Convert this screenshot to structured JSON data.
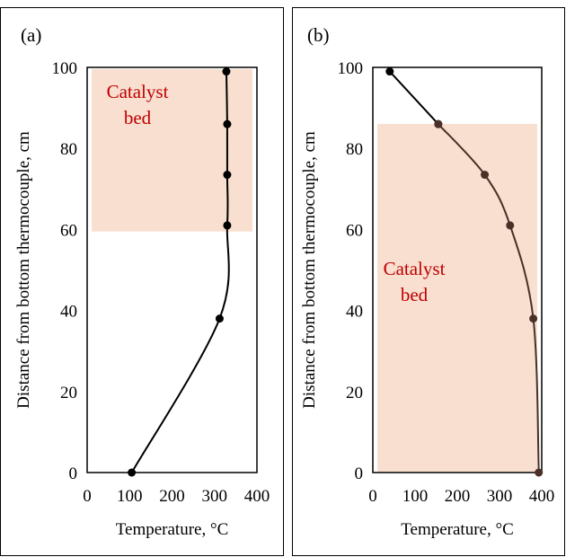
{
  "chart_data": [
    {
      "type": "line",
      "panel_label": "(a)",
      "xlabel": "Temperature, °C",
      "ylabel": "Distance from bottom thermocouple, cm",
      "xlim": [
        0,
        400
      ],
      "ylim": [
        0,
        100
      ],
      "xticks": [
        "0",
        "100",
        "200",
        "300",
        "400"
      ],
      "yticks": [
        "0",
        "20",
        "40",
        "60",
        "80",
        "100"
      ],
      "grid": false,
      "region": {
        "label_lines": [
          "Catalyst",
          "bed"
        ],
        "x_range": [
          0,
          400
        ],
        "y_range": [
          59.5,
          100
        ],
        "color": "#f8dfd0",
        "label_color": "#c00000"
      },
      "series": [
        {
          "color": "#000000",
          "points": [
            {
              "x": 105,
              "y": 0
            },
            {
              "x": 312,
              "y": 38
            },
            {
              "x": 330,
              "y": 61
            },
            {
              "x": 330,
              "y": 73.5
            },
            {
              "x": 330,
              "y": 86
            },
            {
              "x": 328,
              "y": 99
            }
          ]
        }
      ]
    },
    {
      "type": "line",
      "panel_label": "(b)",
      "xlabel": "Temperature, °C",
      "ylabel": "Distance from bottom thermocouple, cm",
      "xlim": [
        0,
        400
      ],
      "ylim": [
        0,
        100
      ],
      "xticks": [
        "0",
        "100",
        "200",
        "300",
        "400"
      ],
      "yticks": [
        "0",
        "20",
        "40",
        "60",
        "80",
        "100"
      ],
      "grid": false,
      "region": {
        "label_lines": [
          "Catalyst",
          "bed"
        ],
        "x_range": [
          0,
          400
        ],
        "y_range": [
          0,
          86.5
        ],
        "color": "#f8dfd0",
        "label_color": "#c00000"
      },
      "series": [
        {
          "color": "#000000",
          "points": [
            {
              "x": 40,
              "y": 99
            },
            {
              "x": 155,
              "y": 86
            }
          ]
        },
        {
          "color": "#4a3026",
          "points": [
            {
              "x": 155,
              "y": 86
            },
            {
              "x": 265,
              "y": 73.5
            },
            {
              "x": 325,
              "y": 61
            },
            {
              "x": 380,
              "y": 38
            },
            {
              "x": 393,
              "y": 0
            }
          ]
        }
      ]
    }
  ]
}
